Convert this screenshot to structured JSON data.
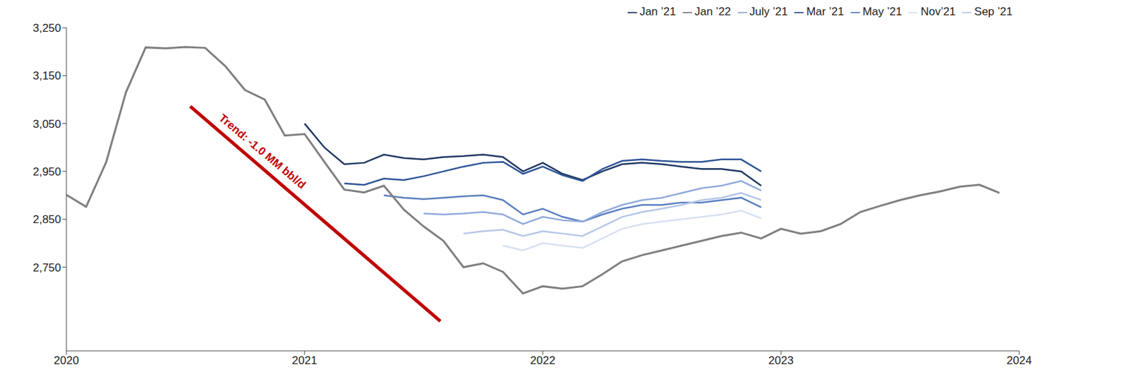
{
  "chart_data": {
    "type": "line",
    "x": [
      2020,
      2020.083,
      2020.167,
      2020.25,
      2020.333,
      2020.417,
      2020.5,
      2020.583,
      2020.667,
      2020.75,
      2020.833,
      2020.917,
      2021,
      2021.083,
      2021.167,
      2021.25,
      2021.333,
      2021.417,
      2021.5,
      2021.583,
      2021.667,
      2021.75,
      2021.833,
      2021.917,
      2022,
      2022.083,
      2022.167,
      2022.25,
      2022.333,
      2022.417,
      2022.5,
      2022.583,
      2022.667,
      2022.75,
      2022.833,
      2022.917,
      2023,
      2023.083,
      2023.167,
      2023.25,
      2023.333,
      2023.417,
      2023.5,
      2023.583,
      2023.667,
      2023.75,
      2023.833,
      2023.917
    ],
    "series": [
      {
        "name": "Jan ’21",
        "color": "#203864",
        "values": [
          null,
          null,
          null,
          null,
          null,
          null,
          null,
          null,
          null,
          null,
          null,
          null,
          3050,
          3000,
          2965,
          2968,
          2985,
          2978,
          2975,
          2980,
          2982,
          2985,
          2980,
          2950,
          2968,
          2945,
          2932,
          2950,
          2965,
          2968,
          2965,
          2960,
          2955,
          2955,
          2950,
          2920,
          null,
          null,
          null,
          null,
          null,
          null,
          null,
          null,
          null,
          null,
          null,
          null
        ]
      },
      {
        "name": "Mar ’21",
        "color": "#2f5597",
        "values": [
          null,
          null,
          null,
          null,
          null,
          null,
          null,
          null,
          null,
          null,
          null,
          null,
          null,
          null,
          2925,
          2922,
          2935,
          2932,
          2940,
          2950,
          2960,
          2968,
          2970,
          2945,
          2960,
          2942,
          2930,
          2955,
          2972,
          2975,
          2972,
          2970,
          2970,
          2975,
          2975,
          2950,
          null,
          null,
          null,
          null,
          null,
          null,
          null,
          null,
          null,
          null,
          null,
          null
        ]
      },
      {
        "name": "May ’21",
        "color": "#5b7fbf",
        "values": [
          null,
          null,
          null,
          null,
          null,
          null,
          null,
          null,
          null,
          null,
          null,
          null,
          null,
          null,
          null,
          null,
          2900,
          2895,
          2892,
          2895,
          2898,
          2900,
          2890,
          2860,
          2872,
          2855,
          2845,
          2860,
          2872,
          2880,
          2880,
          2885,
          2885,
          2890,
          2895,
          2875,
          null,
          null,
          null,
          null,
          null,
          null,
          null,
          null,
          null,
          null,
          null,
          null
        ]
      },
      {
        "name": "July ’21",
        "color": "#8faadc",
        "values": [
          null,
          null,
          null,
          null,
          null,
          null,
          null,
          null,
          null,
          null,
          null,
          null,
          null,
          null,
          null,
          null,
          null,
          null,
          2862,
          2860,
          2862,
          2865,
          2860,
          2840,
          2855,
          2848,
          2845,
          2865,
          2880,
          2890,
          2895,
          2905,
          2915,
          2920,
          2930,
          2910,
          null,
          null,
          null,
          null,
          null,
          null,
          null,
          null,
          null,
          null,
          null,
          null
        ]
      },
      {
        "name": "Sep ’21",
        "color": "#b4c7e7",
        "values": [
          null,
          null,
          null,
          null,
          null,
          null,
          null,
          null,
          null,
          null,
          null,
          null,
          null,
          null,
          null,
          null,
          null,
          null,
          null,
          null,
          2820,
          2825,
          2828,
          2815,
          2825,
          2820,
          2815,
          2835,
          2855,
          2865,
          2872,
          2880,
          2890,
          2895,
          2905,
          2890,
          null,
          null,
          null,
          null,
          null,
          null,
          null,
          null,
          null,
          null,
          null,
          null
        ]
      },
      {
        "name": "Nov’21",
        "color": "#d6e0f2",
        "values": [
          null,
          null,
          null,
          null,
          null,
          null,
          null,
          null,
          null,
          null,
          null,
          null,
          null,
          null,
          null,
          null,
          null,
          null,
          null,
          null,
          null,
          null,
          2795,
          2785,
          2800,
          2795,
          2790,
          2810,
          2830,
          2840,
          2845,
          2850,
          2855,
          2860,
          2868,
          2852,
          null,
          null,
          null,
          null,
          null,
          null,
          null,
          null,
          null,
          null,
          null,
          null
        ]
      },
      {
        "name": "Jan ’22",
        "color": "#7f7f7f",
        "values": [
          2901,
          2876,
          2969,
          3115,
          3209,
          3207,
          3210,
          3208,
          3170,
          3120,
          3100,
          3025,
          3028,
          2970,
          2912,
          2906,
          2920,
          2870,
          2835,
          2805,
          2750,
          2758,
          2740,
          2695,
          2710,
          2705,
          2710,
          2735,
          2762,
          2775,
          2785,
          2795,
          2805,
          2815,
          2822,
          2810,
          2830,
          2820,
          2825,
          2840,
          2865,
          2878,
          2890,
          2900,
          2908,
          2918,
          2922,
          2905
        ]
      }
    ],
    "xlim": [
      2020,
      2024
    ],
    "xticks": [
      2020,
      2021,
      2022,
      2023,
      2024
    ],
    "ylim": [
      2575,
      3250
    ],
    "yticks": [
      {
        "value": 2750,
        "label": "2,750"
      },
      {
        "value": 2850,
        "label": "2,850"
      },
      {
        "value": 2950,
        "label": "2,950"
      },
      {
        "value": 3050,
        "label": "3,050"
      },
      {
        "value": 3150,
        "label": "3,150"
      },
      {
        "value": 3250,
        "label": "3,250"
      }
    ],
    "grid": false,
    "legend": "top right",
    "annotations": [
      {
        "text": "Trend: -1.0 MM bbl/d",
        "x": [
          2020.52,
          2021.57
        ],
        "y": [
          3086,
          2637
        ],
        "color": "#c00000"
      }
    ]
  }
}
